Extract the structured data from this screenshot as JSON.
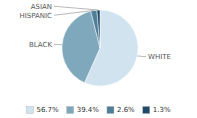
{
  "chart_data": {
    "type": "pie",
    "categories": [
      "WHITE",
      "BLACK",
      "HISPANIC",
      "ASIAN"
    ],
    "values": [
      56.7,
      39.4,
      2.6,
      1.3
    ],
    "value_labels": [
      "56.7%",
      "39.4%",
      "2.6%",
      "1.3%"
    ],
    "colors": [
      "#d0e3ee",
      "#7fa8bc",
      "#4e7f97",
      "#1e4a6b"
    ],
    "legend": "bottom"
  }
}
